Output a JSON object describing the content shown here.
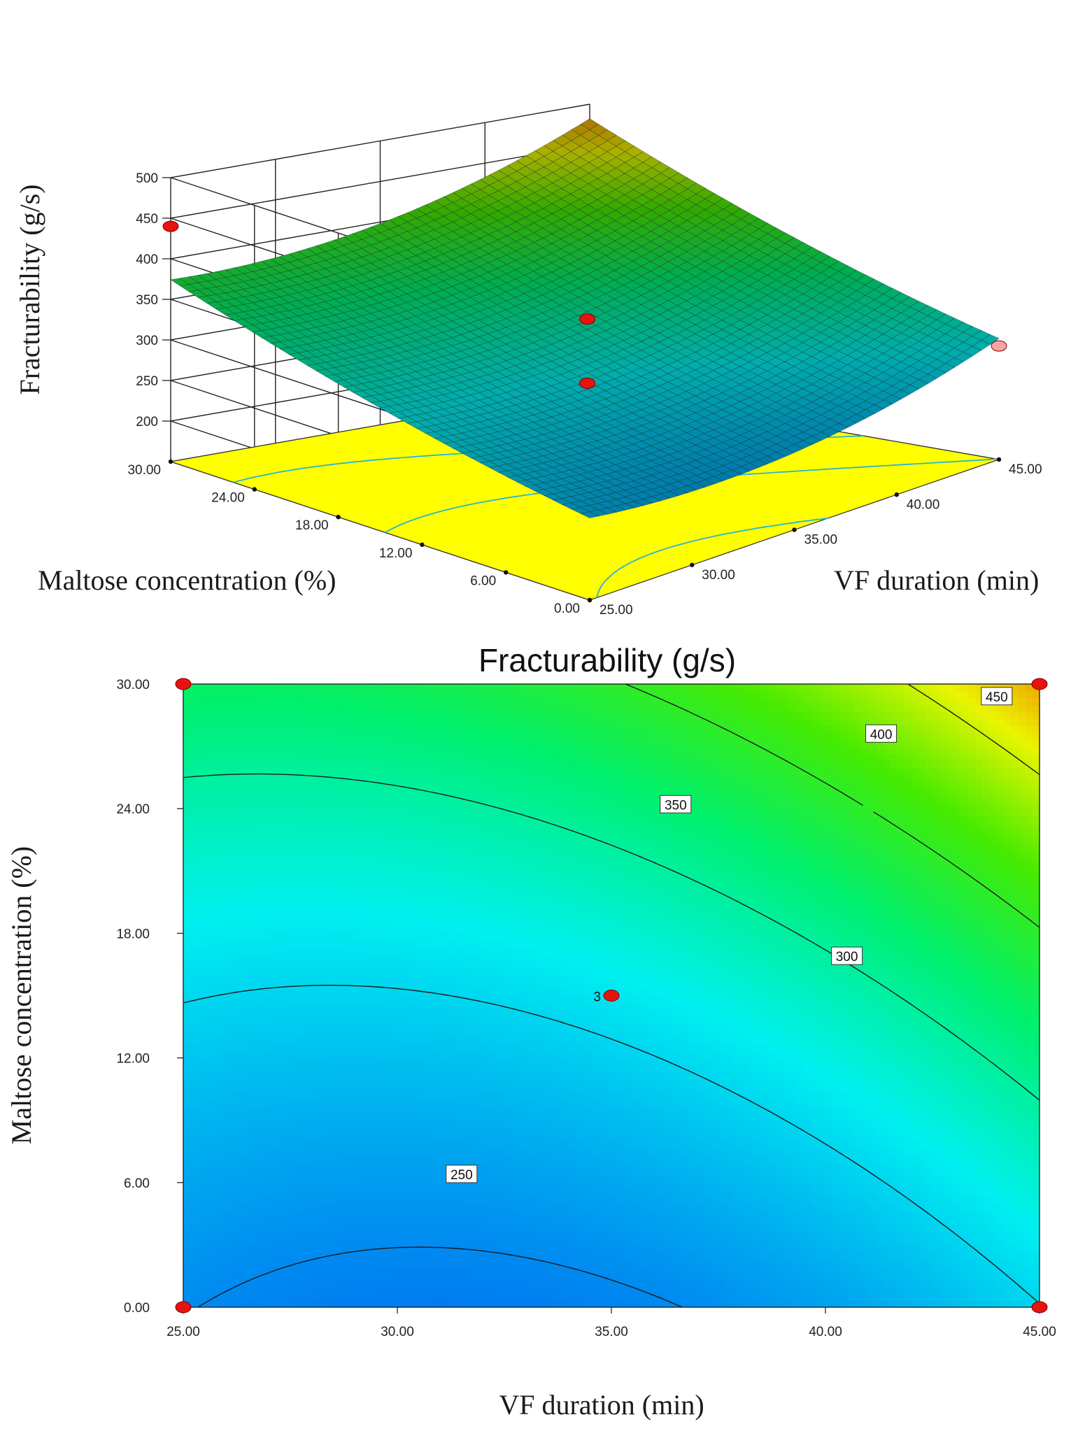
{
  "chart_data": [
    {
      "type": "surface3d",
      "name": "response-surface",
      "zlabel": "Fracturability (g/s)",
      "xlabel": "VF duration (min)",
      "ylabel": "Maltose concentration (%)",
      "x_ticks": [
        "25.00",
        "30.00",
        "35.00",
        "40.00",
        "45.00"
      ],
      "y_ticks": [
        "0.00",
        "6.00",
        "12.00",
        "18.00",
        "24.00",
        "30.00"
      ],
      "z_ticks": [
        "200",
        "250",
        "300",
        "350",
        "400",
        "450",
        "500"
      ],
      "xlim": [
        25,
        45
      ],
      "ylim": [
        0,
        30
      ],
      "zlim": [
        150,
        500
      ],
      "corner_surface_values": {
        "x25_y0": 256,
        "x45_y0": 305,
        "x25_y30": 390,
        "x45_y30": 475
      },
      "design_points": [
        {
          "x": 35,
          "y": 15,
          "z": 345,
          "above_surface": true
        },
        {
          "x": 35,
          "y": 15,
          "z": 266,
          "above_surface": false
        },
        {
          "x": 25,
          "y": 30,
          "z": 440,
          "above_surface": true
        },
        {
          "x": 45,
          "y": 0,
          "z": 290,
          "above_surface": false
        }
      ],
      "floor_contours": [
        "250",
        "300",
        "350"
      ]
    },
    {
      "type": "contour",
      "name": "contour-plot",
      "title": "Fracturability (g/s)",
      "xlabel": "VF duration (min)",
      "ylabel": "Maltose concentration (%)",
      "x_ticks": [
        "25.00",
        "30.00",
        "35.00",
        "40.00",
        "45.00"
      ],
      "y_ticks": [
        "0.00",
        "6.00",
        "12.00",
        "18.00",
        "24.00",
        "30.00"
      ],
      "xlim": [
        25,
        45
      ],
      "ylim": [
        0,
        30
      ],
      "levels": [
        250,
        300,
        350,
        400,
        450
      ],
      "contour_labels": [
        {
          "level": "250",
          "x": 31.5,
          "y": 6.4
        },
        {
          "level": "300",
          "x": 40.5,
          "y": 16.9
        },
        {
          "level": "350",
          "x": 36.5,
          "y": 24.2
        },
        {
          "level": "400",
          "x": 41.3,
          "y": 27.6
        },
        {
          "level": "450",
          "x": 44.0,
          "y": 29.4
        }
      ],
      "design_points": [
        {
          "x": 25,
          "y": 30,
          "label": ""
        },
        {
          "x": 45,
          "y": 30,
          "label": ""
        },
        {
          "x": 25,
          "y": 0,
          "label": ""
        },
        {
          "x": 45,
          "y": 0,
          "label": ""
        },
        {
          "x": 35,
          "y": 15,
          "label": "3"
        }
      ]
    }
  ],
  "colors": {
    "floor": "#ffff00",
    "marker": "#e8130f",
    "marker_light": "#f7a4a4",
    "contour_line": "#1a1a1a"
  }
}
